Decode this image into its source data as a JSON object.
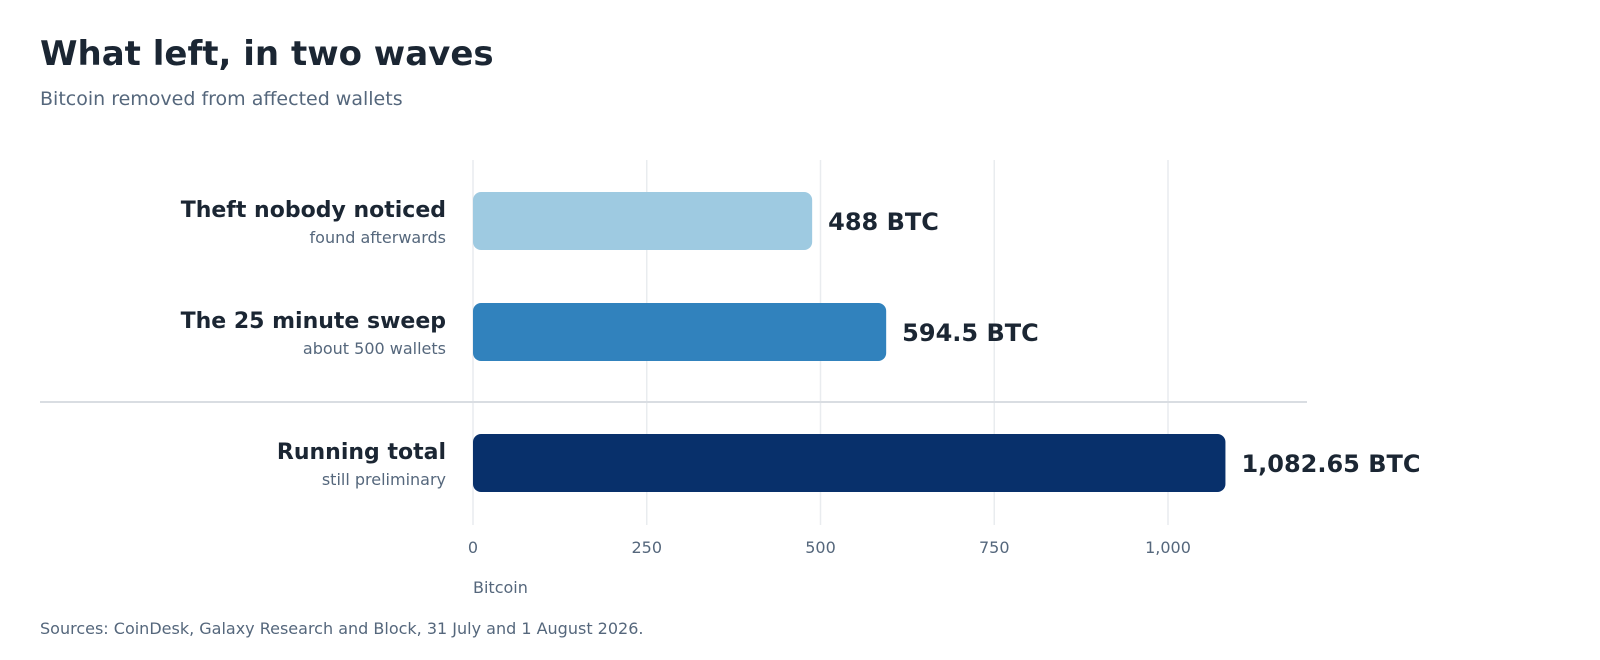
{
  "header": {
    "title": "What left, in two waves",
    "subtitle": "Bitcoin removed from affected wallets"
  },
  "footer": {
    "source": "Sources: CoinDesk, Galaxy Research and Block, 31 July and 1 August 2026."
  },
  "colors": {
    "text_dark": "#1b2633",
    "text_muted": "#55677c",
    "grid": "#e9ecef",
    "divider": "#d9dde2"
  },
  "chart_data": {
    "type": "bar",
    "orientation": "horizontal",
    "title": "What left, in two waves",
    "subtitle": "Bitcoin removed from affected wallets",
    "xlabel": "Bitcoin",
    "ylabel": "",
    "xlim": [
      0,
      1200
    ],
    "xticks": [
      0,
      250,
      500,
      750,
      1000
    ],
    "xtick_labels": [
      "0",
      "250",
      "500",
      "750",
      "1,000"
    ],
    "grid": true,
    "categories": [
      "Theft nobody noticed",
      "The 25 minute sweep",
      "Running total"
    ],
    "sublabels": [
      "found afterwards",
      "about 500 wallets",
      "still preliminary"
    ],
    "values": [
      488,
      594.5,
      1082.65
    ],
    "value_labels": [
      "488 BTC",
      "594.5 BTC",
      "1,082.65 BTC"
    ],
    "bar_colors": [
      "#9ecae1",
      "#3182bd",
      "#08306b"
    ],
    "divider_before_last": true
  }
}
